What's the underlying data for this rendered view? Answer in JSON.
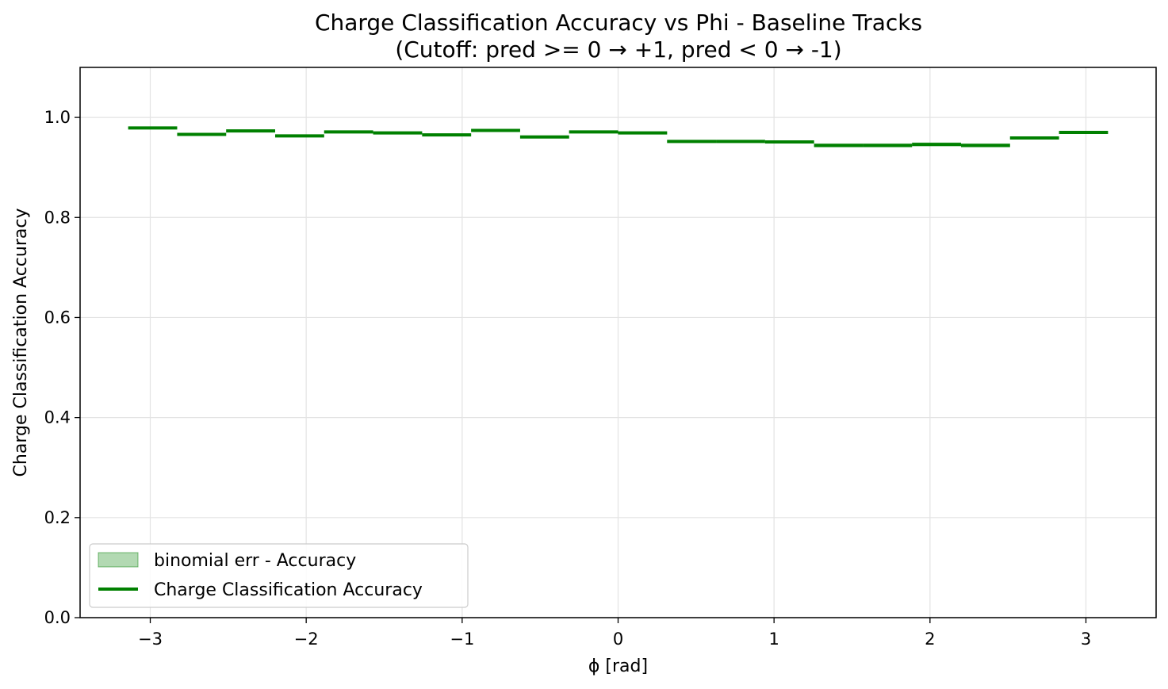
{
  "chart_data": {
    "type": "line",
    "title": "Charge Classification Accuracy vs Phi - Baseline Tracks",
    "subtitle": "(Cutoff: pred >= 0 → +1, pred < 0 → -1)",
    "xlabel": "ϕ [rad]",
    "ylabel": "Charge Classification Accuracy",
    "xlim": [
      -3.45,
      3.45
    ],
    "ylim": [
      0.0,
      1.1
    ],
    "xticks": [
      -3,
      -2,
      -1,
      0,
      1,
      2,
      3
    ],
    "xtick_labels": [
      "−3",
      "−2",
      "−1",
      "0",
      "1",
      "2",
      "3"
    ],
    "yticks": [
      0.0,
      0.2,
      0.4,
      0.6,
      0.8,
      1.0
    ],
    "ytick_labels": [
      "0.0",
      "0.2",
      "0.4",
      "0.6",
      "0.8",
      "1.0"
    ],
    "grid": true,
    "legend_position": "lower-left",
    "bin_edges": [
      -3.1416,
      -2.8274,
      -2.5133,
      -2.1991,
      -1.885,
      -1.5708,
      -1.2566,
      -0.9425,
      -0.6283,
      -0.3142,
      0.0,
      0.3142,
      0.6283,
      0.9425,
      1.2566,
      1.5708,
      1.885,
      2.1991,
      2.5133,
      2.8274,
      3.1416
    ],
    "series": [
      {
        "name": "Charge Classification Accuracy",
        "style": "step",
        "color": "#008000",
        "values": [
          0.979,
          0.966,
          0.973,
          0.963,
          0.971,
          0.969,
          0.965,
          0.974,
          0.961,
          0.971,
          0.969,
          0.952,
          0.952,
          0.951,
          0.944,
          0.944,
          0.946,
          0.944,
          0.959,
          0.97
        ],
        "err": [
          0.002,
          0.003,
          0.003,
          0.003,
          0.003,
          0.003,
          0.003,
          0.003,
          0.003,
          0.003,
          0.003,
          0.003,
          0.003,
          0.003,
          0.004,
          0.004,
          0.004,
          0.004,
          0.003,
          0.003
        ]
      },
      {
        "name": "binomial err - Accuracy",
        "style": "band",
        "color": "#008000"
      }
    ]
  }
}
